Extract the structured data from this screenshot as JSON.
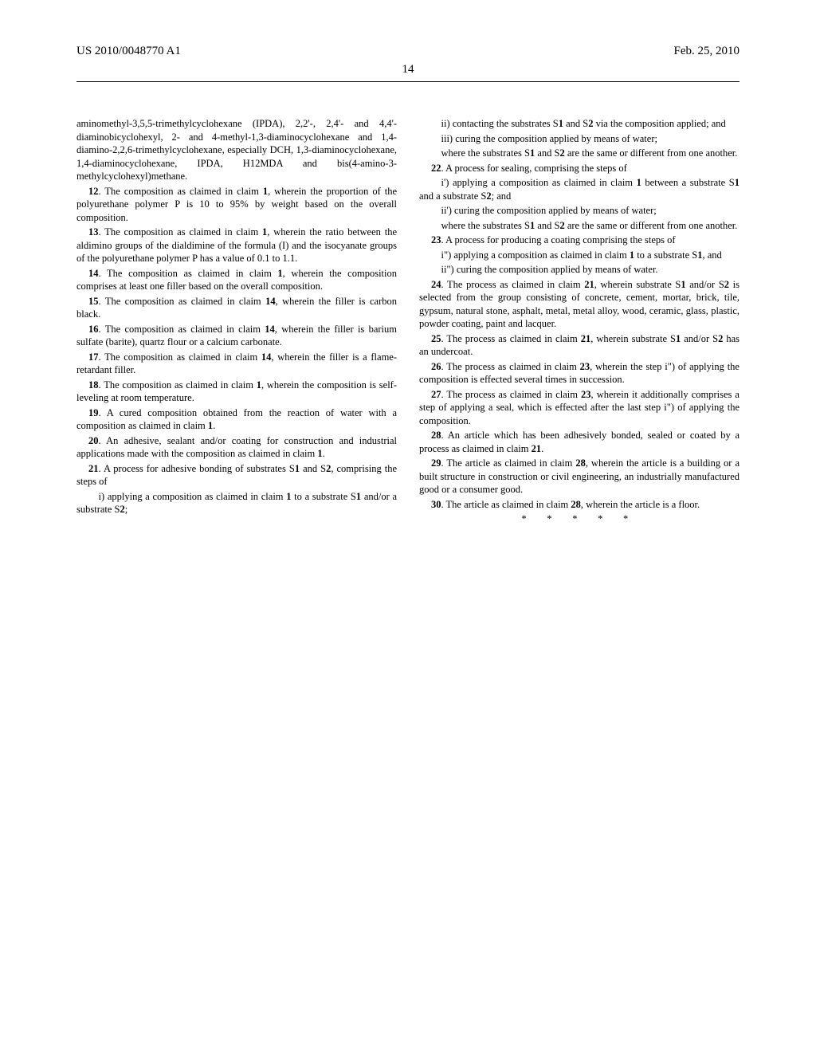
{
  "header": {
    "left": "US 2010/0048770 A1",
    "right": "Feb. 25, 2010",
    "page": "14"
  },
  "col1": {
    "p0": "aminomethyl-3,5,5-trimethylcyclohexane (IPDA), 2,2'-, 2,4'- and 4,4'-diaminobicyclohexyl, 2- and 4-methyl-1,3-diaminocyclohexane and 1,4-diamino-2,2,6-trimethylcyclohexane, especially DCH, 1,3-diaminocyclohexane, 1,4-diaminocyclohexane, IPDA, H12MDA and bis(4-amino-3-methylcyclohexyl)methane.",
    "c12b": "12",
    "c12": ". The composition as claimed in claim ",
    "c12b2": "1",
    "c12t": ", wherein the proportion of the polyurethane polymer P is 10 to 95% by weight based on the overall composition.",
    "c13b": "13",
    "c13": ". The composition as claimed in claim ",
    "c13b2": "1",
    "c13t": ", wherein the ratio between the aldimino groups of the dialdimine of the formula (I) and the isocyanate groups of the polyurethane polymer P has a value of 0.1 to 1.1.",
    "c14b": "14",
    "c14": ". The composition as claimed in claim ",
    "c14b2": "1",
    "c14t": ", wherein the composition comprises at least one filler based on the overall composition.",
    "c15b": "15",
    "c15": ". The composition as claimed in claim ",
    "c15b2": "14",
    "c15t": ", wherein the filler is carbon black.",
    "c16b": "16",
    "c16": ". The composition as claimed in claim ",
    "c16b2": "14",
    "c16t": ", wherein the filler is barium sulfate (barite), quartz flour or a calcium carbonate.",
    "c17b": "17",
    "c17": ". The composition as claimed in claim ",
    "c17b2": "14",
    "c17t": ", wherein the filler is a flame-retardant filler.",
    "c18b": "18",
    "c18": ". The composition as claimed in claim ",
    "c18b2": "1",
    "c18t": ", wherein the composition is self-leveling at room temperature.",
    "c19b": "19",
    "c19": ". A cured composition obtained from the reaction of water with a composition as claimed in claim ",
    "c19b2": "1",
    "c19t": ".",
    "c20b": "20",
    "c20": ". An adhesive, sealant and/or coating for construction and industrial applications made with the composition as claimed in claim ",
    "c20b2": "1",
    "c20t": ".",
    "c21b": "21",
    "c21": ". A process for adhesive bonding of substrates S",
    "c21b2": "1",
    "c21m": " and S",
    "c21b3": "2",
    "c21t": ", comprising the steps of",
    "c21i": "i) applying a composition as claimed in claim ",
    "c21ib": "1",
    "c21im": " to a substrate S",
    "c21ib2": "1",
    "c21im2": " and/or a substrate S",
    "c21ib3": "2",
    "c21it": ";",
    "c21ii": "ii) contacting the substrates S",
    "c21iib": "1",
    "c21iim": " and S",
    "c21iib2": "2",
    "c21iit": " via the composition applied; and"
  },
  "col2": {
    "c21iii": "iii) curing the composition applied by means of water;",
    "c21w": "where the substrates S",
    "c21wb": "1",
    "c21wm": " and S",
    "c21wb2": "2",
    "c21wt": " are the same or different from one another.",
    "c22b": "22",
    "c22": ". A process for sealing, comprising the steps of",
    "c22i": "i') applying a composition as claimed in claim ",
    "c22ib": "1",
    "c22im": " between a substrate S",
    "c22ib2": "1",
    "c22im2": " and a substrate S",
    "c22ib3": "2",
    "c22it": "; and",
    "c22ii": "ii') curing the composition applied by means of water;",
    "c22w": "where the substrates S",
    "c22wb": "1",
    "c22wm": " and S",
    "c22wb2": "2",
    "c22wt": " are the same or different from one another.",
    "c23b": "23",
    "c23": ". A process for producing a coating comprising the steps of",
    "c23i": "i\") applying a composition as claimed in claim ",
    "c23ib": "1",
    "c23im": " to a substrate S",
    "c23ib2": "1",
    "c23it": ", and",
    "c23ii": "ii\") curing the composition applied by means of water.",
    "c24b": "24",
    "c24": ". The process as claimed in claim ",
    "c24b2": "21",
    "c24m": ", wherein substrate S",
    "c24b3": "1",
    "c24m2": " and/or S",
    "c24b4": "2",
    "c24t": " is selected from the group consisting of concrete, cement, mortar, brick, tile, gypsum, natural stone, asphalt, metal, metal alloy, wood, ceramic, glass, plastic, powder coating, paint and lacquer.",
    "c25b": "25",
    "c25": ". The process as claimed in claim ",
    "c25b2": "21",
    "c25m": ", wherein substrate S",
    "c25b3": "1",
    "c25m2": " and/or S",
    "c25b4": "2",
    "c25t": " has an undercoat.",
    "c26b": "26",
    "c26": ". The process as claimed in claim ",
    "c26b2": "23",
    "c26t": ", wherein the step i\") of applying the composition is effected several times in succession.",
    "c27b": "27",
    "c27": ". The process as claimed in claim ",
    "c27b2": "23",
    "c27t": ", wherein it additionally comprises a step of applying a seal, which is effected after the last step i\") of applying the composition.",
    "c28b": "28",
    "c28": ". An article which has been adhesively bonded, sealed or coated by a process as claimed in claim ",
    "c28b2": "21",
    "c28t": ".",
    "c29b": "29",
    "c29": ". The article as claimed in claim ",
    "c29b2": "28",
    "c29t": ", wherein the article is a building or a built structure in construction or civil engineering, an industrially manufactured good or a consumer good.",
    "c30b": "30",
    "c30": ". The article as claimed in claim ",
    "c30b2": "28",
    "c30t": ", wherein the article is a floor.",
    "stars": "* * * * *"
  }
}
